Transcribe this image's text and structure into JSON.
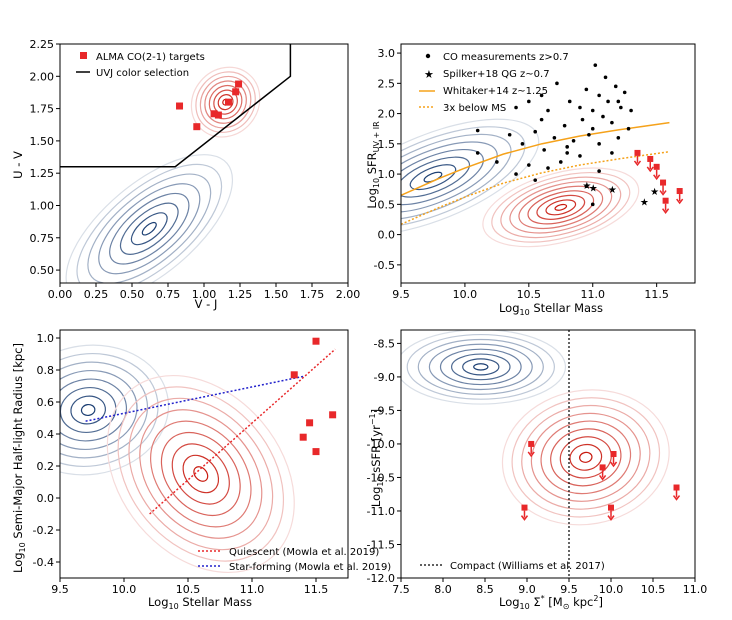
{
  "chart_data": [
    {
      "type": "scatter",
      "id": "uvj",
      "xlabel": "V - J",
      "ylabel": "U - V",
      "xlim": [
        0.0,
        2.0
      ],
      "ylim": [
        0.4,
        2.25
      ],
      "xticks": [
        "0.00",
        "0.25",
        "0.50",
        "0.75",
        "1.00",
        "1.25",
        "1.50",
        "1.75",
        "2.00"
      ],
      "yticks": [
        "0.50",
        "0.75",
        "1.00",
        "1.25",
        "1.50",
        "1.75",
        "2.00",
        "2.25"
      ],
      "legend": [
        "ALMA CO(2-1) targets",
        "UVJ color selection"
      ],
      "legend_position": "top-left",
      "uvj_line": [
        [
          0.0,
          1.3
        ],
        [
          0.8,
          1.3
        ],
        [
          1.6,
          2.0
        ],
        [
          1.6,
          2.25
        ]
      ],
      "targets": [
        [
          0.83,
          1.77
        ],
        [
          0.95,
          1.61
        ],
        [
          1.07,
          1.71
        ],
        [
          1.1,
          1.7
        ],
        [
          1.17,
          1.8
        ],
        [
          1.22,
          1.88
        ],
        [
          1.24,
          1.94
        ]
      ],
      "contours": [
        {
          "name": "red",
          "color": "#c81a0f",
          "center": [
            1.15,
            1.8
          ],
          "rx": 0.1,
          "ry": 0.1,
          "rot": -50,
          "levels": 8
        },
        {
          "name": "blue",
          "color": "#1c3f73",
          "center": [
            0.62,
            0.82
          ],
          "rx": 0.28,
          "ry": 0.14,
          "rot": -40,
          "levels": 8
        }
      ]
    },
    {
      "type": "scatter",
      "id": "sfr",
      "xlabel": "Log10 Stellar Mass",
      "ylabel": "Log10 SFR UV+IR",
      "xlim": [
        9.5,
        11.8
      ],
      "ylim": [
        -0.8,
        3.15
      ],
      "xticks": [
        "9.5",
        "10.0",
        "10.5",
        "11.0",
        "11.5"
      ],
      "yticks": [
        "-0.5",
        "0.0",
        "0.5",
        "1.0",
        "1.5",
        "2.0",
        "2.5",
        "3.0"
      ],
      "legend": [
        "CO measurements z>0.7",
        "Spilker+18 QG z~0.7",
        "Whitaker+14 z~1.25",
        "3x below MS"
      ],
      "legend_position": "top-left",
      "whitaker": [
        [
          9.5,
          0.65
        ],
        [
          9.8,
          0.93
        ],
        [
          10.0,
          1.1
        ],
        [
          10.3,
          1.33
        ],
        [
          10.6,
          1.5
        ],
        [
          10.9,
          1.63
        ],
        [
          11.2,
          1.73
        ],
        [
          11.6,
          1.85
        ]
      ],
      "below_ms": [
        [
          9.5,
          0.17
        ],
        [
          9.8,
          0.45
        ],
        [
          10.0,
          0.62
        ],
        [
          10.3,
          0.85
        ],
        [
          10.6,
          1.02
        ],
        [
          10.9,
          1.15
        ],
        [
          11.2,
          1.25
        ],
        [
          11.6,
          1.37
        ]
      ],
      "co_points": [
        [
          10.1,
          1.72
        ],
        [
          10.1,
          1.35
        ],
        [
          10.25,
          1.2
        ],
        [
          10.35,
          1.65
        ],
        [
          10.4,
          2.1
        ],
        [
          10.45,
          1.5
        ],
        [
          10.5,
          2.2
        ],
        [
          10.55,
          1.7
        ],
        [
          10.6,
          1.9
        ],
        [
          10.6,
          2.3
        ],
        [
          10.62,
          1.4
        ],
        [
          10.65,
          2.05
        ],
        [
          10.7,
          1.6
        ],
        [
          10.72,
          2.5
        ],
        [
          10.75,
          1.2
        ],
        [
          10.78,
          1.8
        ],
        [
          10.8,
          1.45
        ],
        [
          10.82,
          2.2
        ],
        [
          10.85,
          1.55
        ],
        [
          10.9,
          2.1
        ],
        [
          10.9,
          1.3
        ],
        [
          10.92,
          1.9
        ],
        [
          10.95,
          2.4
        ],
        [
          10.97,
          1.65
        ],
        [
          11.0,
          1.75
        ],
        [
          11.0,
          2.05
        ],
        [
          11.02,
          2.8
        ],
        [
          11.05,
          2.3
        ],
        [
          11.05,
          1.5
        ],
        [
          11.08,
          1.95
        ],
        [
          11.1,
          2.6
        ],
        [
          11.12,
          2.2
        ],
        [
          11.15,
          1.85
        ],
        [
          11.18,
          2.45
        ],
        [
          11.2,
          2.2
        ],
        [
          11.2,
          1.6
        ],
        [
          11.22,
          2.1
        ],
        [
          11.25,
          2.35
        ],
        [
          11.28,
          1.75
        ],
        [
          11.3,
          2.05
        ],
        [
          10.4,
          1.0
        ],
        [
          10.5,
          1.15
        ],
        [
          10.95,
          0.8
        ],
        [
          11.0,
          0.5
        ],
        [
          11.05,
          1.05
        ],
        [
          10.8,
          1.35
        ],
        [
          10.65,
          1.1
        ],
        [
          11.15,
          1.35
        ],
        [
          10.55,
          0.9
        ]
      ],
      "qg_points": [
        [
          10.95,
          0.82
        ],
        [
          11.0,
          0.78
        ],
        [
          11.15,
          0.75
        ],
        [
          11.4,
          0.55
        ],
        [
          11.48,
          0.72
        ]
      ],
      "upper_limits": [
        [
          11.35,
          1.35
        ],
        [
          11.45,
          1.25
        ],
        [
          11.5,
          1.12
        ],
        [
          11.55,
          0.86
        ],
        [
          11.57,
          0.56
        ],
        [
          11.68,
          0.72
        ]
      ],
      "contours": [
        {
          "name": "blue",
          "color": "#1c3f73",
          "center": [
            9.75,
            0.95
          ],
          "rx": 0.35,
          "ry": 0.28,
          "rot": -22,
          "levels": 8
        },
        {
          "name": "red",
          "color": "#c81a0f",
          "center": [
            10.75,
            0.45
          ],
          "rx": 0.22,
          "ry": 0.2,
          "rot": -15,
          "levels": 9
        }
      ]
    },
    {
      "type": "scatter",
      "id": "size",
      "xlabel": "Log10 Stellar Mass",
      "ylabel": "Log10 Semi-Major Half-light Radius [kpc]",
      "xlim": [
        9.5,
        11.75
      ],
      "ylim": [
        -0.5,
        1.05
      ],
      "xticks": [
        "9.5",
        "10.0",
        "10.5",
        "11.0",
        "11.5"
      ],
      "yticks": [
        "-0.4",
        "-0.2",
        "0.0",
        "0.2",
        "0.4",
        "0.6",
        "0.8",
        "1.0"
      ],
      "legend": [
        "Quiescent (Mowla et al. 2019)",
        "Star-forming (Mowla et al. 2019)"
      ],
      "legend_position": "bottom-right",
      "quiescent_line": [
        [
          10.2,
          -0.1
        ],
        [
          11.65,
          0.93
        ]
      ],
      "starforming_line": [
        [
          9.7,
          0.48
        ],
        [
          11.4,
          0.76
        ]
      ],
      "targets": [
        [
          11.33,
          0.77
        ],
        [
          11.4,
          0.38
        ],
        [
          11.45,
          0.47
        ],
        [
          11.5,
          0.98
        ],
        [
          11.5,
          0.29
        ],
        [
          11.63,
          0.52
        ]
      ],
      "contours": [
        {
          "name": "blue",
          "color": "#1c3f73",
          "center": [
            9.72,
            0.55
          ],
          "rx": 0.25,
          "ry": 0.16,
          "rot": -8,
          "levels": 8
        },
        {
          "name": "red",
          "color": "#c81a0f",
          "center": [
            10.6,
            0.15
          ],
          "rx": 0.22,
          "ry": 0.24,
          "rot": -40,
          "levels": 9
        }
      ]
    },
    {
      "type": "scatter",
      "id": "ssfr",
      "xlabel": "Log10 Σ* [M⊙ kpc²]",
      "ylabel": "Log10 sSFR [yr⁻¹]",
      "xlim": [
        7.5,
        11.0
      ],
      "ylim": [
        -12.0,
        -8.3
      ],
      "xticks": [
        "7.5",
        "8.0",
        "8.5",
        "9.0",
        "9.5",
        "10.0",
        "10.5",
        "11.0"
      ],
      "yticks": [
        "-12.0",
        "-11.5",
        "-11.0",
        "-10.5",
        "-10.0",
        "-9.5",
        "-9.0",
        "-8.5"
      ],
      "legend": [
        "Compact (Williams et al. 2017)"
      ],
      "legend_position": "bottom-left",
      "compact_x": 9.5,
      "upper_limits": [
        [
          8.97,
          -10.95
        ],
        [
          9.05,
          -10.0
        ],
        [
          9.9,
          -10.35
        ],
        [
          10.0,
          -10.95
        ],
        [
          10.03,
          -10.15
        ],
        [
          10.78,
          -10.65
        ]
      ],
      "contours": [
        {
          "name": "blue",
          "color": "#1c3f73",
          "center": [
            8.45,
            -8.85
          ],
          "rx": 0.4,
          "ry": 0.22,
          "rot": 0,
          "levels": 8
        },
        {
          "name": "red",
          "color": "#c81a0f",
          "center": [
            9.7,
            -10.2
          ],
          "rx": 0.35,
          "ry": 0.35,
          "rot": -10,
          "levels": 9
        }
      ]
    }
  ]
}
